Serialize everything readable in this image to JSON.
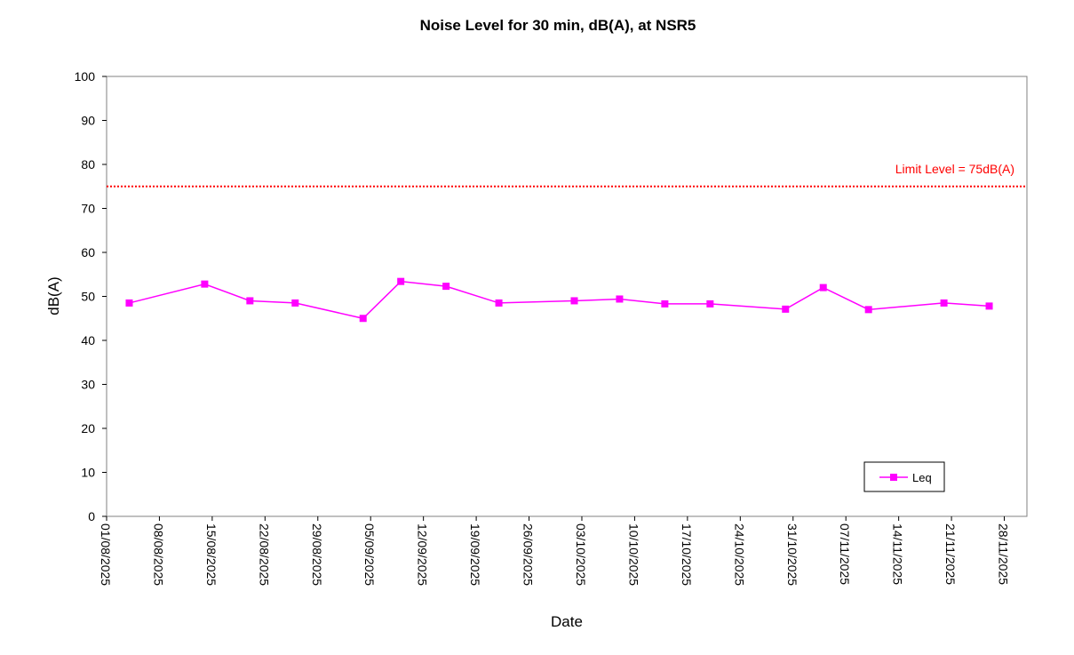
{
  "chart_data": {
    "type": "line",
    "title": "Noise Level for 30 min, dB(A), at NSR5",
    "xlabel": "Date",
    "ylabel": "dB(A)",
    "ylim": [
      0,
      100
    ],
    "yticks": [
      0,
      10,
      20,
      30,
      40,
      50,
      60,
      70,
      80,
      90,
      100
    ],
    "xlim": [
      "2025-08-01",
      "2025-12-01"
    ],
    "xtick_labels": [
      "01/08/2025",
      "08/08/2025",
      "15/08/2025",
      "22/08/2025",
      "29/08/2025",
      "05/09/2025",
      "12/09/2025",
      "19/09/2025",
      "26/09/2025",
      "03/10/2025",
      "10/10/2025",
      "17/10/2025",
      "24/10/2025",
      "31/10/2025",
      "07/11/2025",
      "14/11/2025",
      "21/11/2025",
      "28/11/2025"
    ],
    "grid": false,
    "legend_position": "bottom-right",
    "limit": {
      "value": 75,
      "label": "Limit Level = 75dB(A)",
      "color": "#ff0000"
    },
    "series": [
      {
        "name": "Leq",
        "color": "#ff00ff",
        "marker": "square",
        "points": [
          {
            "x": "2025-08-04",
            "y": 48.5
          },
          {
            "x": "2025-08-14",
            "y": 52.8
          },
          {
            "x": "2025-08-20",
            "y": 49.0
          },
          {
            "x": "2025-08-26",
            "y": 48.5
          },
          {
            "x": "2025-09-04",
            "y": 45.0
          },
          {
            "x": "2025-09-09",
            "y": 53.4
          },
          {
            "x": "2025-09-15",
            "y": 52.3
          },
          {
            "x": "2025-09-22",
            "y": 48.5
          },
          {
            "x": "2025-10-02",
            "y": 49.0
          },
          {
            "x": "2025-10-08",
            "y": 49.4
          },
          {
            "x": "2025-10-14",
            "y": 48.3
          },
          {
            "x": "2025-10-20",
            "y": 48.3
          },
          {
            "x": "2025-10-30",
            "y": 47.1
          },
          {
            "x": "2025-11-04",
            "y": 52.0
          },
          {
            "x": "2025-11-10",
            "y": 47.0
          },
          {
            "x": "2025-11-20",
            "y": 48.5
          },
          {
            "x": "2025-11-26",
            "y": 47.8
          }
        ]
      }
    ]
  }
}
